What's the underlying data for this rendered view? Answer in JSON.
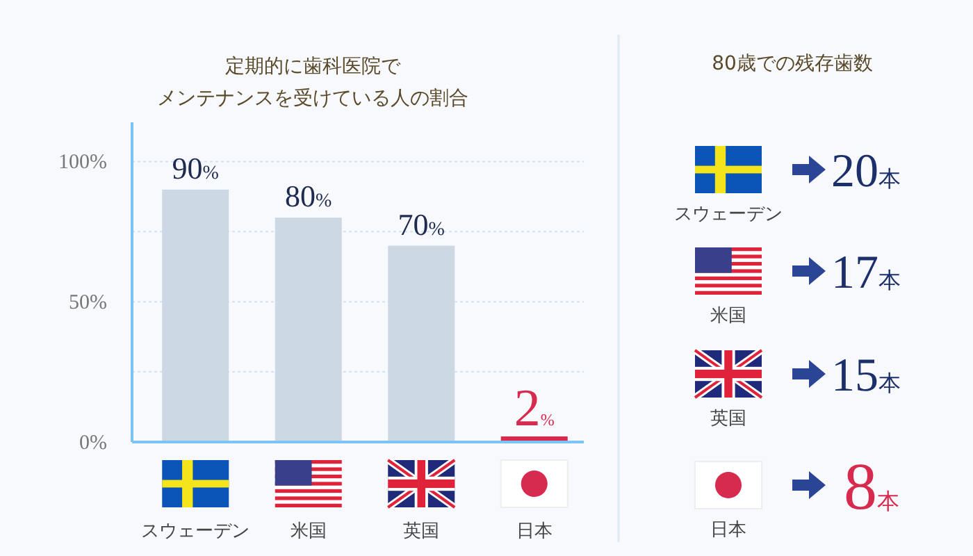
{
  "chart_data": [
    {
      "type": "bar",
      "title": "定期的に歯科医院で",
      "subtitle": "メンテナンスを受けている人の割合",
      "categories": [
        "スウェーデン",
        "米国",
        "英国",
        "日本"
      ],
      "values": [
        90,
        80,
        70,
        2
      ],
      "colors": [
        "#ccd8e3",
        "#ccd8e3",
        "#ccd8e3",
        "#d62a4e"
      ],
      "value_labels": [
        "90%",
        "80%",
        "70%",
        "2%"
      ],
      "ylim": [
        0,
        114
      ],
      "yticks": [
        {
          "value": 0,
          "label": "0%"
        },
        {
          "value": 25,
          "label": null
        },
        {
          "value": 50,
          "label": "50%"
        },
        {
          "value": 75,
          "label": null
        },
        {
          "value": 100,
          "label": "100%"
        }
      ],
      "grid": "y"
    },
    {
      "type": "other",
      "title": "80歳での残存歯数",
      "categories": [
        "スウェーデン",
        "米国",
        "英国",
        "日本"
      ],
      "value_labels": [
        "20本",
        "17本",
        "15本",
        "8本"
      ],
      "colors": [
        "#1b2f6b",
        "#1b2f6b",
        "#1b2f6b",
        "#d62a4e"
      ]
    }
  ]
}
